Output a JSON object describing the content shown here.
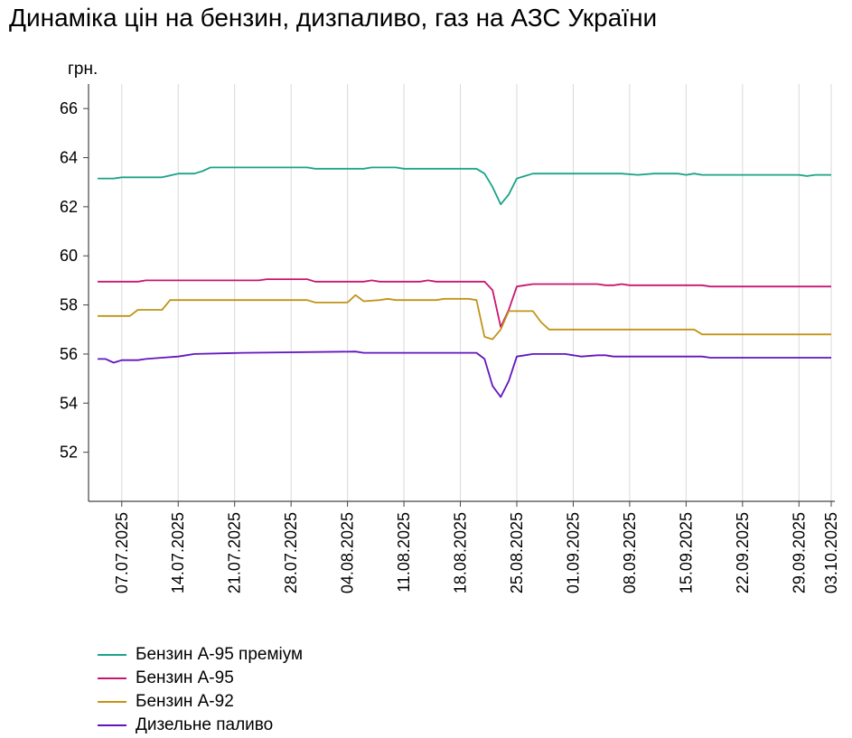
{
  "title": "Динаміка цін на бензин, дизпаливо, газ на АЗС України",
  "chart_data": {
    "type": "line",
    "title": "Динаміка цін на бензин, дизпаливо, газ на АЗС України",
    "ylabel": "грн.",
    "xlabel": "",
    "ylim": [
      50,
      67
    ],
    "yticks": [
      52,
      54,
      56,
      58,
      60,
      62,
      64,
      66
    ],
    "x_range": [
      "2025-07-04",
      "2025-10-03"
    ],
    "xticks": [
      "07.07.2025",
      "14.07.2025",
      "21.07.2025",
      "28.07.2025",
      "04.08.2025",
      "11.08.2025",
      "18.08.2025",
      "25.08.2025",
      "01.09.2025",
      "08.09.2025",
      "15.09.2025",
      "22.09.2025",
      "29.09.2025",
      "03.10.2025"
    ],
    "grid": "vertical",
    "legend_position": "bottom",
    "series": [
      {
        "name": "Бензин А-95 преміум",
        "color": "#1aa387",
        "points": [
          [
            "2025-07-04",
            63.15
          ],
          [
            "2025-07-06",
            63.15
          ],
          [
            "2025-07-07",
            63.2
          ],
          [
            "2025-07-12",
            63.2
          ],
          [
            "2025-07-14",
            63.35
          ],
          [
            "2025-07-16",
            63.35
          ],
          [
            "2025-07-17",
            63.45
          ],
          [
            "2025-07-18",
            63.6
          ],
          [
            "2025-07-30",
            63.6
          ],
          [
            "2025-07-31",
            63.55
          ],
          [
            "2025-08-06",
            63.55
          ],
          [
            "2025-08-07",
            63.6
          ],
          [
            "2025-08-10",
            63.6
          ],
          [
            "2025-08-11",
            63.55
          ],
          [
            "2025-08-20",
            63.55
          ],
          [
            "2025-08-21",
            63.35
          ],
          [
            "2025-08-22",
            62.8
          ],
          [
            "2025-08-23",
            62.1
          ],
          [
            "2025-08-24",
            62.5
          ],
          [
            "2025-08-25",
            63.15
          ],
          [
            "2025-08-26",
            63.25
          ],
          [
            "2025-08-27",
            63.35
          ],
          [
            "2025-09-07",
            63.35
          ],
          [
            "2025-09-09",
            63.3
          ],
          [
            "2025-09-11",
            63.35
          ],
          [
            "2025-09-14",
            63.35
          ],
          [
            "2025-09-15",
            63.3
          ],
          [
            "2025-09-16",
            63.35
          ],
          [
            "2025-09-17",
            63.3
          ],
          [
            "2025-09-29",
            63.3
          ],
          [
            "2025-09-30",
            63.25
          ],
          [
            "2025-10-01",
            63.3
          ],
          [
            "2025-10-03",
            63.3
          ]
        ]
      },
      {
        "name": "Бензин А-95",
        "color": "#c8166f",
        "points": [
          [
            "2025-07-04",
            58.95
          ],
          [
            "2025-07-09",
            58.95
          ],
          [
            "2025-07-10",
            59.0
          ],
          [
            "2025-07-24",
            59.0
          ],
          [
            "2025-07-25",
            59.05
          ],
          [
            "2025-07-30",
            59.05
          ],
          [
            "2025-07-31",
            58.95
          ],
          [
            "2025-08-06",
            58.95
          ],
          [
            "2025-08-07",
            59.0
          ],
          [
            "2025-08-08",
            58.95
          ],
          [
            "2025-08-13",
            58.95
          ],
          [
            "2025-08-14",
            59.0
          ],
          [
            "2025-08-15",
            58.95
          ],
          [
            "2025-08-21",
            58.95
          ],
          [
            "2025-08-22",
            58.6
          ],
          [
            "2025-08-23",
            57.1
          ],
          [
            "2025-08-24",
            57.8
          ],
          [
            "2025-08-25",
            58.75
          ],
          [
            "2025-08-26",
            58.8
          ],
          [
            "2025-08-27",
            58.85
          ],
          [
            "2025-09-04",
            58.85
          ],
          [
            "2025-09-05",
            58.8
          ],
          [
            "2025-09-06",
            58.8
          ],
          [
            "2025-09-07",
            58.85
          ],
          [
            "2025-09-08",
            58.8
          ],
          [
            "2025-09-17",
            58.8
          ],
          [
            "2025-09-18",
            58.75
          ],
          [
            "2025-10-03",
            58.75
          ]
        ]
      },
      {
        "name": "Бензин А-92",
        "color": "#c19417",
        "points": [
          [
            "2025-07-04",
            57.55
          ],
          [
            "2025-07-08",
            57.55
          ],
          [
            "2025-07-09",
            57.8
          ],
          [
            "2025-07-12",
            57.8
          ],
          [
            "2025-07-13",
            58.2
          ],
          [
            "2025-07-30",
            58.2
          ],
          [
            "2025-07-31",
            58.1
          ],
          [
            "2025-08-04",
            58.1
          ],
          [
            "2025-08-05",
            58.4
          ],
          [
            "2025-08-06",
            58.15
          ],
          [
            "2025-08-08",
            58.2
          ],
          [
            "2025-08-09",
            58.25
          ],
          [
            "2025-08-10",
            58.2
          ],
          [
            "2025-08-15",
            58.2
          ],
          [
            "2025-08-16",
            58.25
          ],
          [
            "2025-08-19",
            58.25
          ],
          [
            "2025-08-20",
            58.2
          ],
          [
            "2025-08-21",
            56.7
          ],
          [
            "2025-08-22",
            56.6
          ],
          [
            "2025-08-23",
            57.0
          ],
          [
            "2025-08-24",
            57.75
          ],
          [
            "2025-08-27",
            57.75
          ],
          [
            "2025-08-28",
            57.3
          ],
          [
            "2025-08-29",
            57.0
          ],
          [
            "2025-09-16",
            57.0
          ],
          [
            "2025-09-17",
            56.8
          ],
          [
            "2025-10-03",
            56.8
          ]
        ]
      },
      {
        "name": "Дизельне паливо",
        "color": "#6315bd",
        "points": [
          [
            "2025-07-04",
            55.8
          ],
          [
            "2025-07-05",
            55.8
          ],
          [
            "2025-07-06",
            55.65
          ],
          [
            "2025-07-07",
            55.75
          ],
          [
            "2025-07-09",
            55.75
          ],
          [
            "2025-07-10",
            55.8
          ],
          [
            "2025-07-12",
            55.85
          ],
          [
            "2025-07-14",
            55.9
          ],
          [
            "2025-07-15",
            55.95
          ],
          [
            "2025-07-16",
            56.0
          ],
          [
            "2025-07-22",
            56.05
          ],
          [
            "2025-08-05",
            56.1
          ],
          [
            "2025-08-06",
            56.05
          ],
          [
            "2025-08-20",
            56.05
          ],
          [
            "2025-08-21",
            55.8
          ],
          [
            "2025-08-22",
            54.7
          ],
          [
            "2025-08-23",
            54.25
          ],
          [
            "2025-08-24",
            54.9
          ],
          [
            "2025-08-25",
            55.9
          ],
          [
            "2025-08-26",
            55.95
          ],
          [
            "2025-08-27",
            56.0
          ],
          [
            "2025-08-31",
            56.0
          ],
          [
            "2025-09-01",
            55.95
          ],
          [
            "2025-09-02",
            55.9
          ],
          [
            "2025-09-04",
            55.95
          ],
          [
            "2025-09-05",
            55.95
          ],
          [
            "2025-09-06",
            55.9
          ],
          [
            "2025-09-17",
            55.9
          ],
          [
            "2025-09-18",
            55.85
          ],
          [
            "2025-10-03",
            55.85
          ]
        ]
      }
    ]
  }
}
